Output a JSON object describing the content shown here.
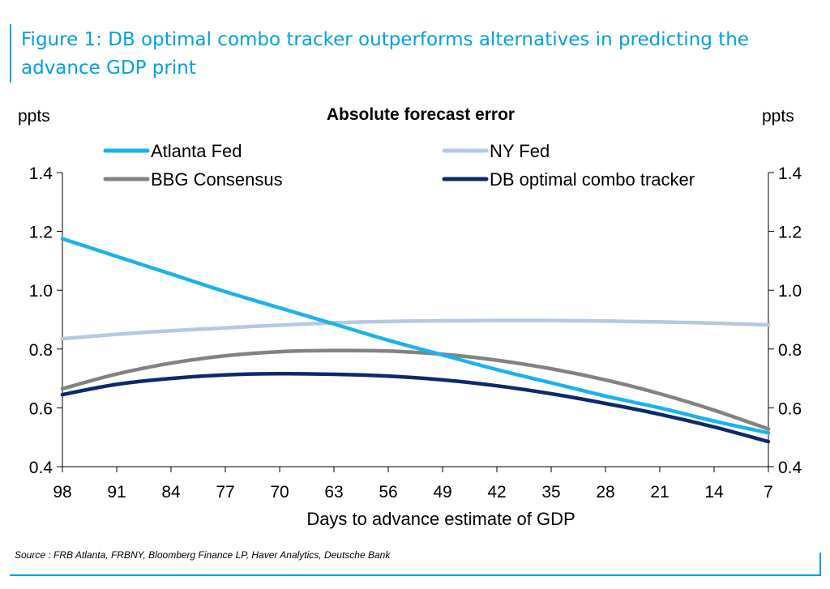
{
  "figure_title": "Figure 1: DB optimal combo tracker outperforms alternatives in predicting the advance GDP print",
  "source": "Source : FRB Atlanta, FRBNY, Bloomberg Finance LP, Haver Analytics, Deutsche Bank",
  "chart_data": {
    "type": "line",
    "title": "Absolute forecast error",
    "xlabel": "Days to advance estimate of GDP",
    "ylabel_left": "ppts",
    "ylabel_right": "ppts",
    "x_ticks": [
      98,
      91,
      84,
      77,
      70,
      63,
      56,
      49,
      42,
      35,
      28,
      21,
      14,
      7
    ],
    "xlim": [
      98,
      7
    ],
    "ylim": [
      0.4,
      1.4
    ],
    "y_ticks": [
      "0.4",
      "0.6",
      "0.8",
      "1.0",
      "1.2",
      "1.4"
    ],
    "grid": false,
    "legend_position": "top",
    "series": [
      {
        "name": "Atlanta Fed",
        "color": "#1ab2ec",
        "x": [
          98,
          91,
          84,
          77,
          70,
          63,
          56,
          49,
          42,
          35,
          28,
          21,
          14,
          7
        ],
        "values": [
          1.175,
          1.115,
          1.055,
          0.995,
          0.94,
          0.885,
          0.83,
          0.78,
          0.73,
          0.685,
          0.64,
          0.6,
          0.555,
          0.515
        ]
      },
      {
        "name": "NY Fed",
        "color": "#b4c8e1",
        "x": [
          98,
          91,
          84,
          77,
          70,
          63,
          56,
          49,
          42,
          35,
          28,
          21,
          14,
          7
        ],
        "values": [
          0.835,
          0.85,
          0.862,
          0.872,
          0.881,
          0.889,
          0.894,
          0.896,
          0.897,
          0.897,
          0.895,
          0.892,
          0.888,
          0.882
        ]
      },
      {
        "name": "BBG Consensus",
        "color": "#828282",
        "x": [
          98,
          91,
          84,
          77,
          70,
          63,
          56,
          49,
          42,
          35,
          28,
          21,
          14,
          7
        ],
        "values": [
          0.665,
          0.715,
          0.752,
          0.777,
          0.791,
          0.795,
          0.793,
          0.782,
          0.762,
          0.733,
          0.695,
          0.648,
          0.592,
          0.528
        ]
      },
      {
        "name": "DB optimal combo tracker",
        "color": "#0c2a6b",
        "x": [
          98,
          91,
          84,
          77,
          70,
          63,
          56,
          49,
          42,
          35,
          28,
          21,
          14,
          7
        ],
        "values": [
          0.645,
          0.68,
          0.7,
          0.712,
          0.716,
          0.714,
          0.708,
          0.695,
          0.675,
          0.648,
          0.615,
          0.578,
          0.535,
          0.485
        ]
      }
    ]
  }
}
